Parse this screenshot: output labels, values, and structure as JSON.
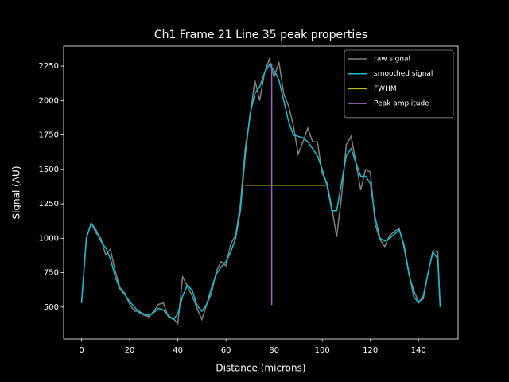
{
  "chart_data": {
    "type": "line",
    "title": "Ch1 Frame 21 Line 35 peak properties",
    "xlabel": "Distance (microns)",
    "ylabel": "Signal (AU)",
    "x": [
      0,
      2,
      4,
      6,
      8,
      10,
      12,
      14,
      16,
      18,
      20,
      22,
      24,
      26,
      28,
      30,
      32,
      34,
      36,
      38,
      40,
      42,
      44,
      46,
      48,
      50,
      52,
      54,
      56,
      58,
      60,
      62,
      64,
      66,
      68,
      70,
      72,
      74,
      76,
      78,
      80,
      82,
      84,
      86,
      88,
      90,
      92,
      94,
      96,
      98,
      100,
      102,
      104,
      106,
      108,
      110,
      112,
      114,
      116,
      118,
      120,
      122,
      124,
      126,
      128,
      130,
      132,
      134,
      136,
      138,
      140,
      142,
      144,
      146,
      148,
      149
    ],
    "series": [
      {
        "name": "raw signal",
        "color": "#808080",
        "values": [
          530,
          1000,
          1110,
          1040,
          1000,
          880,
          920,
          760,
          640,
          600,
          520,
          470,
          470,
          440,
          430,
          470,
          520,
          530,
          430,
          420,
          380,
          720,
          650,
          580,
          490,
          410,
          520,
          600,
          760,
          830,
          800,
          960,
          1020,
          1250,
          1650,
          1880,
          2150,
          2000,
          2200,
          2300,
          2170,
          2280,
          2050,
          1960,
          1820,
          1610,
          1700,
          1800,
          1700,
          1700,
          1470,
          1400,
          1220,
          1010,
          1300,
          1680,
          1740,
          1550,
          1350,
          1500,
          1480,
          1100,
          990,
          940,
          1020,
          1050,
          1070,
          930,
          740,
          620,
          540,
          560,
          750,
          910,
          900,
          510
        ]
      },
      {
        "name": "smoothed signal",
        "color": "#17becf",
        "values": [
          530,
          1000,
          1110,
          1060,
          980,
          930,
          850,
          720,
          630,
          590,
          540,
          500,
          460,
          450,
          440,
          460,
          490,
          480,
          440,
          410,
          450,
          580,
          660,
          620,
          510,
          470,
          520,
          640,
          740,
          790,
          830,
          900,
          1000,
          1200,
          1600,
          1900,
          2050,
          2100,
          2200,
          2260,
          2220,
          2150,
          2000,
          1850,
          1750,
          1740,
          1730,
          1700,
          1650,
          1600,
          1500,
          1380,
          1200,
          1200,
          1400,
          1600,
          1650,
          1550,
          1450,
          1450,
          1400,
          1150,
          1000,
          980,
          1000,
          1030,
          1060,
          950,
          750,
          580,
          530,
          580,
          750,
          900,
          850,
          500
        ]
      },
      {
        "name": "FWHM",
        "color": "#bcbd22",
        "x": [
          68,
          101.5
        ],
        "values": [
          1385,
          1385
        ]
      },
      {
        "name": "Peak amplitude",
        "color": "#9467bd",
        "x": [
          79,
          79
        ],
        "values": [
          515,
          2270
        ]
      }
    ],
    "xlim": [
      -7.45,
      156.45
    ],
    "xticks": [
      0,
      20,
      40,
      60,
      80,
      100,
      120,
      140
    ],
    "ylim": [
      268,
      2395
    ],
    "yticks": [
      500,
      750,
      1000,
      1250,
      1500,
      1750,
      2000,
      2250
    ],
    "legend": "upper right"
  }
}
